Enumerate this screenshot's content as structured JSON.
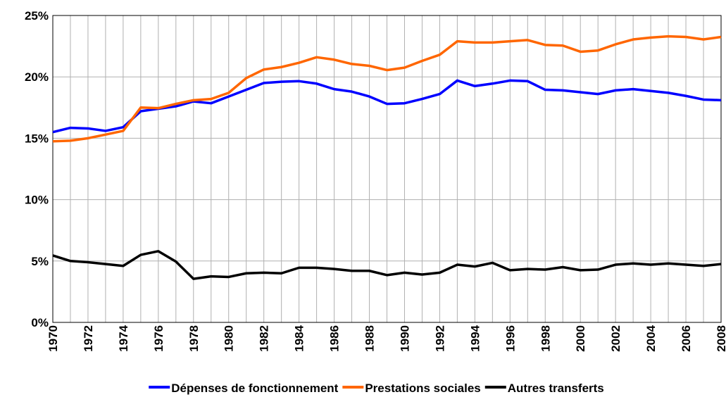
{
  "chart_data": {
    "type": "line",
    "x": [
      1970,
      1971,
      1972,
      1973,
      1974,
      1975,
      1976,
      1977,
      1978,
      1979,
      1980,
      1981,
      1982,
      1983,
      1984,
      1985,
      1986,
      1987,
      1988,
      1989,
      1990,
      1991,
      1992,
      1993,
      1994,
      1995,
      1996,
      1997,
      1998,
      1999,
      2000,
      2001,
      2002,
      2003,
      2004,
      2005,
      2006,
      2007,
      2008
    ],
    "series": [
      {
        "name": "Dépenses de fonctionnement",
        "color": "#0000ff",
        "values": [
          15.5,
          15.85,
          15.8,
          15.6,
          15.9,
          17.2,
          17.4,
          17.6,
          18.0,
          17.85,
          18.4,
          18.95,
          19.5,
          19.6,
          19.65,
          19.45,
          19.0,
          18.8,
          18.4,
          17.8,
          17.85,
          18.2,
          18.6,
          19.7,
          19.25,
          19.45,
          19.7,
          19.65,
          18.95,
          18.9,
          18.75,
          18.6,
          18.9,
          19.0,
          18.85,
          18.7,
          18.45,
          18.15,
          18.1
        ]
      },
      {
        "name": "Prestations sociales",
        "color": "#ff6600",
        "values": [
          14.75,
          14.8,
          15.0,
          15.3,
          15.6,
          17.5,
          17.45,
          17.8,
          18.1,
          18.2,
          18.7,
          19.9,
          20.6,
          20.8,
          21.15,
          21.6,
          21.4,
          21.05,
          20.9,
          20.55,
          20.75,
          21.3,
          21.8,
          22.9,
          22.8,
          22.8,
          22.9,
          23.0,
          22.6,
          22.55,
          22.05,
          22.15,
          22.65,
          23.05,
          23.2,
          23.3,
          23.25,
          23.05,
          23.25
        ]
      },
      {
        "name": "Autres transferts",
        "color": "#000000",
        "values": [
          5.45,
          5.0,
          4.9,
          4.75,
          4.6,
          5.5,
          5.8,
          4.95,
          3.55,
          3.75,
          3.7,
          4.0,
          4.05,
          4.0,
          4.45,
          4.45,
          4.35,
          4.2,
          4.2,
          3.85,
          4.05,
          3.9,
          4.05,
          4.7,
          4.55,
          4.85,
          4.25,
          4.35,
          4.3,
          4.5,
          4.25,
          4.3,
          4.7,
          4.8,
          4.7,
          4.8,
          4.7,
          4.6,
          4.75
        ]
      }
    ],
    "xlim": [
      1970,
      2008
    ],
    "xticks": [
      1970,
      1972,
      1974,
      1976,
      1978,
      1980,
      1982,
      1984,
      1986,
      1988,
      1990,
      1992,
      1994,
      1996,
      1998,
      2000,
      2002,
      2004,
      2006,
      2008
    ],
    "x_minor_ticks": [
      1971,
      1973,
      1975,
      1977,
      1979,
      1981,
      1983,
      1985,
      1987,
      1989,
      1991,
      1993,
      1995,
      1997,
      1999,
      2001,
      2003,
      2005,
      2007
    ],
    "ylim": [
      0,
      25
    ],
    "yticks": [
      {
        "value": 0,
        "label": "0%"
      },
      {
        "value": 5,
        "label": "5%"
      },
      {
        "value": 10,
        "label": "10%"
      },
      {
        "value": 15,
        "label": "15%"
      },
      {
        "value": 20,
        "label": "20%"
      },
      {
        "value": 25,
        "label": "25%"
      }
    ],
    "grid": true,
    "legend": "bottom"
  }
}
